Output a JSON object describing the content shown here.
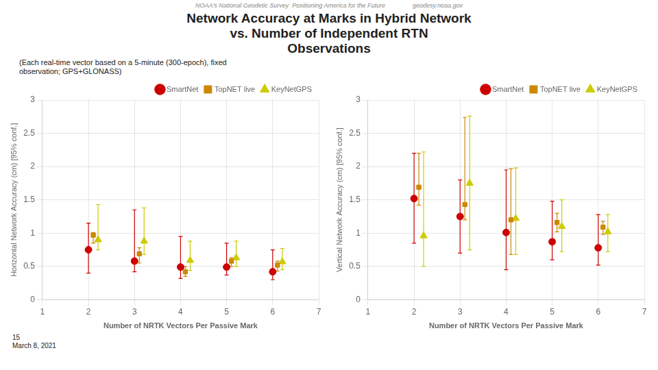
{
  "chart_data": [
    {
      "type": "scatter",
      "title": "Network Accuracy at Marks in Hybrid Network\nvs. Number of Independent RTN\nObservations",
      "subtitle": "(Each real-time vector based on a 5-minute (300-epoch), fixed\nobservation; GPS+GLONASS)",
      "annotations": [
        "NOAA's National Geodetic Survey  Positioning America for the Future                geodesy.noaa.gov",
        "15",
        "March 8, 2021"
      ],
      "x": [
        2,
        3,
        4,
        5,
        6
      ],
      "x_label": "Number of NRTK Vectors Per Passive Mark",
      "y_label": "Horizontal Network Accuracy (cm) [95% conf.]",
      "xlim": [
        1,
        7
      ],
      "xticks": [
        1,
        2,
        3,
        4,
        5,
        6,
        7
      ],
      "ylim": [
        0,
        3
      ],
      "yticks": [
        0,
        0.5,
        1,
        1.5,
        2,
        2.5,
        3
      ],
      "grid": true,
      "legend": "top-right",
      "series": [
        {
          "name": "SmartNet",
          "color": "#cc0000",
          "marker": "circle",
          "values": [
            0.75,
            0.58,
            0.49,
            0.49,
            0.42
          ],
          "y_lo": [
            0.4,
            0.42,
            0.32,
            0.37,
            0.3
          ],
          "y_hi": [
            1.15,
            1.35,
            0.95,
            0.85,
            0.75
          ]
        },
        {
          "name": "TopNET live",
          "color": "#cc8800",
          "marker": "square",
          "values": [
            0.97,
            0.69,
            0.42,
            0.58,
            0.52
          ],
          "y_lo": [
            0.85,
            0.55,
            0.35,
            0.5,
            0.43
          ],
          "y_hi": [
            1.01,
            0.78,
            0.5,
            0.63,
            0.58
          ]
        },
        {
          "name": "KeyNetGPS",
          "color": "#cccc00",
          "marker": "triangle",
          "values": [
            0.9,
            0.88,
            0.59,
            0.63,
            0.57
          ],
          "y_lo": [
            0.75,
            0.68,
            0.44,
            0.5,
            0.45
          ],
          "y_hi": [
            1.43,
            1.38,
            0.88,
            0.88,
            0.77
          ]
        }
      ]
    },
    {
      "type": "scatter",
      "x": [
        2,
        3,
        4,
        5,
        6
      ],
      "x_label": "Number of NRTK Vectors Per Passive Mark",
      "y_label": "Vertical Network Accuracy (cm) [95% conf.]",
      "xlim": [
        1,
        7
      ],
      "xticks": [
        1,
        2,
        3,
        4,
        5,
        6,
        7
      ],
      "ylim": [
        0,
        3
      ],
      "yticks": [
        0,
        0.5,
        1,
        1.5,
        2,
        2.5,
        3
      ],
      "grid": true,
      "legend": "top-right",
      "series": [
        {
          "name": "SmartNet",
          "color": "#cc0000",
          "marker": "circle",
          "values": [
            1.52,
            1.25,
            1.01,
            0.87,
            0.78
          ],
          "y_lo": [
            0.85,
            0.7,
            0.45,
            0.6,
            0.52
          ],
          "y_hi": [
            2.2,
            1.8,
            1.95,
            1.48,
            1.28
          ]
        },
        {
          "name": "TopNET live",
          "color": "#cc8800",
          "marker": "square",
          "values": [
            1.69,
            1.43,
            1.2,
            1.16,
            1.09
          ],
          "y_lo": [
            1.42,
            1.2,
            0.68,
            1.02,
            0.98
          ],
          "y_hi": [
            2.2,
            2.74,
            1.97,
            1.3,
            1.18
          ]
        },
        {
          "name": "KeyNetGPS",
          "color": "#cccc00",
          "marker": "triangle",
          "values": [
            0.96,
            1.75,
            1.22,
            1.1,
            1.02
          ],
          "y_lo": [
            0.5,
            0.75,
            0.68,
            0.72,
            0.72
          ],
          "y_hi": [
            2.22,
            2.76,
            1.98,
            1.5,
            1.28
          ]
        }
      ]
    }
  ]
}
